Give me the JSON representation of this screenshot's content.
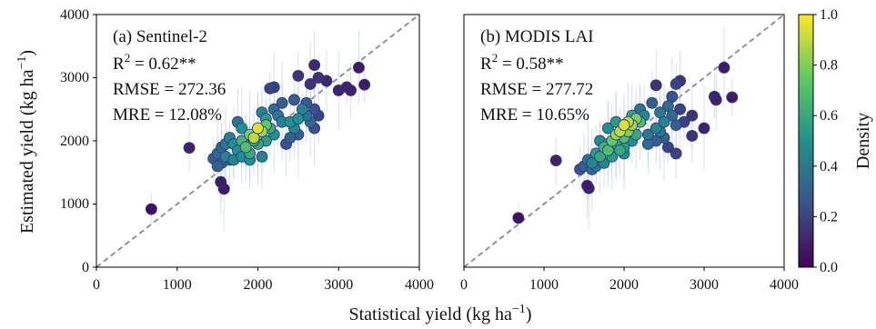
{
  "chart_data": {
    "type": "scatter",
    "axes": {
      "xlabel": "Statistical yield (kg ha",
      "xlabel_sup": "−1",
      "xlabel_close": ")",
      "ylabel": "Estimated yield (kg ha",
      "ylabel_sup": "−1",
      "ylabel_close": ")",
      "xlim": [
        0,
        4000
      ],
      "ylim": [
        0,
        4000
      ],
      "xticks": [
        0,
        1000,
        2000,
        3000,
        4000
      ],
      "yticks": [
        0,
        1000,
        2000,
        3000,
        4000
      ],
      "xtick_labels": [
        "0",
        "1000",
        "2000",
        "3000",
        "4000"
      ],
      "ytick_labels": [
        "0",
        "1000",
        "2000",
        "3000",
        "4000"
      ],
      "grid": false,
      "reference_line": "1:1 dashed gray"
    },
    "colorbar": {
      "label": "Density",
      "range": [
        0.0,
        1.0
      ],
      "ticks": [
        0.0,
        0.2,
        0.4,
        0.6,
        0.8,
        1.0
      ],
      "tick_labels": [
        "0.0",
        "0.2",
        "0.4",
        "0.6",
        "0.8",
        "1.0"
      ],
      "colormap": "viridis",
      "colors": [
        "#440154",
        "#3b528b",
        "#21918c",
        "#5ec962",
        "#fde725"
      ]
    },
    "panels": [
      {
        "title": "(a) Sentinel-2",
        "r2_prefix": "R",
        "r2_sup": "2",
        "r2_value": " = 0.62**",
        "rmse": "RMSE = 272.36",
        "mre": "MRE = 12.08%",
        "points": [
          [
            680,
            920,
            0.05
          ],
          [
            1150,
            1890,
            0.1
          ],
          [
            1540,
            1350,
            0.08
          ],
          [
            1580,
            1240,
            0.07
          ],
          [
            1450,
            1720,
            0.3
          ],
          [
            1500,
            1800,
            0.35
          ],
          [
            1550,
            1650,
            0.3
          ],
          [
            1600,
            1750,
            0.45
          ],
          [
            1650,
            1700,
            0.35
          ],
          [
            1700,
            1950,
            0.5
          ],
          [
            1750,
            1850,
            0.5
          ],
          [
            1800,
            2000,
            0.65
          ],
          [
            1850,
            1900,
            0.7
          ],
          [
            1900,
            2100,
            0.8
          ],
          [
            1950,
            2050,
            0.9
          ],
          [
            2000,
            2200,
            0.95
          ],
          [
            2050,
            2150,
            0.85
          ],
          [
            2100,
            2250,
            0.75
          ],
          [
            2150,
            2200,
            0.6
          ],
          [
            2200,
            2100,
            0.5
          ],
          [
            1700,
            1700,
            0.45
          ],
          [
            1800,
            1750,
            0.5
          ],
          [
            1900,
            1800,
            0.6
          ],
          [
            1650,
            2050,
            0.45
          ],
          [
            1550,
            1900,
            0.35
          ],
          [
            1750,
            2300,
            0.4
          ],
          [
            2000,
            1950,
            0.6
          ],
          [
            2100,
            2000,
            0.55
          ],
          [
            2250,
            2400,
            0.4
          ],
          [
            2300,
            2300,
            0.45
          ],
          [
            2400,
            2300,
            0.5
          ],
          [
            2450,
            2200,
            0.45
          ],
          [
            2500,
            2350,
            0.5
          ],
          [
            2550,
            2500,
            0.45
          ],
          [
            2600,
            2400,
            0.4
          ],
          [
            2650,
            2300,
            0.35
          ],
          [
            2500,
            2100,
            0.3
          ],
          [
            2400,
            2050,
            0.3
          ],
          [
            2350,
            1950,
            0.25
          ],
          [
            2300,
            2600,
            0.3
          ],
          [
            2450,
            2650,
            0.3
          ],
          [
            2600,
            2600,
            0.3
          ],
          [
            2700,
            2200,
            0.25
          ],
          [
            2700,
            2500,
            0.25
          ],
          [
            2750,
            2400,
            0.2
          ],
          [
            2200,
            2850,
            0.2
          ],
          [
            2150,
            2830,
            0.2
          ],
          [
            2500,
            3030,
            0.15
          ],
          [
            2700,
            3200,
            0.12
          ],
          [
            2650,
            2900,
            0.15
          ],
          [
            2750,
            3000,
            0.15
          ],
          [
            2850,
            2950,
            0.12
          ],
          [
            3000,
            2800,
            0.1
          ],
          [
            3100,
            2850,
            0.1
          ],
          [
            3150,
            2800,
            0.1
          ],
          [
            3250,
            3160,
            0.08
          ],
          [
            3320,
            2890,
            0.08
          ],
          [
            1850,
            2000,
            0.55
          ],
          [
            1950,
            2000,
            0.6
          ],
          [
            2000,
            2100,
            0.75
          ],
          [
            1900,
            1700,
            0.5
          ],
          [
            2050,
            1750,
            0.45
          ],
          [
            1800,
            2200,
            0.5
          ],
          [
            2100,
            2350,
            0.55
          ],
          [
            1500,
            1600,
            0.3
          ],
          [
            1600,
            1950,
            0.4
          ],
          [
            2200,
            2500,
            0.35
          ],
          [
            2050,
            2450,
            0.45
          ]
        ]
      },
      {
        "title": "(b) MODIS LAI",
        "r2_prefix": "R",
        "r2_sup": "2",
        "r2_value": " = 0.58**",
        "rmse": "RMSE = 277.72",
        "mre": "MRE = 10.65%",
        "points": [
          [
            680,
            780,
            0.05
          ],
          [
            1150,
            1690,
            0.1
          ],
          [
            1540,
            1290,
            0.08
          ],
          [
            1560,
            1250,
            0.07
          ],
          [
            1450,
            1550,
            0.25
          ],
          [
            1500,
            1600,
            0.3
          ],
          [
            1550,
            1700,
            0.4
          ],
          [
            1600,
            1650,
            0.45
          ],
          [
            1650,
            1800,
            0.55
          ],
          [
            1700,
            1750,
            0.6
          ],
          [
            1750,
            1900,
            0.65
          ],
          [
            1800,
            1850,
            0.7
          ],
          [
            1850,
            2000,
            0.75
          ],
          [
            1900,
            2100,
            0.85
          ],
          [
            1950,
            2150,
            0.9
          ],
          [
            2000,
            2250,
            0.95
          ],
          [
            2050,
            2300,
            0.9
          ],
          [
            2100,
            2250,
            0.85
          ],
          [
            2150,
            2350,
            0.8
          ],
          [
            2200,
            2300,
            0.7
          ],
          [
            1700,
            2000,
            0.5
          ],
          [
            1800,
            2200,
            0.5
          ],
          [
            1900,
            1950,
            0.6
          ],
          [
            1650,
            1600,
            0.4
          ],
          [
            1750,
            1650,
            0.45
          ],
          [
            1850,
            1750,
            0.55
          ],
          [
            2000,
            1900,
            0.55
          ],
          [
            2100,
            2000,
            0.5
          ],
          [
            2250,
            2400,
            0.45
          ],
          [
            2300,
            2100,
            0.4
          ],
          [
            2400,
            2200,
            0.45
          ],
          [
            2450,
            2450,
            0.4
          ],
          [
            2500,
            2300,
            0.45
          ],
          [
            2550,
            2550,
            0.35
          ],
          [
            2600,
            2400,
            0.35
          ],
          [
            2650,
            2250,
            0.3
          ],
          [
            2500,
            2050,
            0.3
          ],
          [
            2400,
            2000,
            0.3
          ],
          [
            2350,
            2600,
            0.3
          ],
          [
            2600,
            2700,
            0.25
          ],
          [
            2650,
            2900,
            0.2
          ],
          [
            2700,
            2950,
            0.15
          ],
          [
            2700,
            2500,
            0.2
          ],
          [
            2750,
            2300,
            0.2
          ],
          [
            2850,
            2080,
            0.15
          ],
          [
            2400,
            2880,
            0.15
          ],
          [
            2550,
            1900,
            0.2
          ],
          [
            2650,
            1800,
            0.2
          ],
          [
            2850,
            2400,
            0.15
          ],
          [
            3000,
            2200,
            0.1
          ],
          [
            3130,
            2700,
            0.1
          ],
          [
            3150,
            2650,
            0.1
          ],
          [
            3250,
            3160,
            0.08
          ],
          [
            3350,
            2690,
            0.08
          ],
          [
            1900,
            2300,
            0.55
          ],
          [
            2000,
            2050,
            0.7
          ],
          [
            2050,
            2150,
            0.8
          ],
          [
            1950,
            1850,
            0.6
          ],
          [
            2150,
            2100,
            0.6
          ],
          [
            1800,
            1950,
            0.6
          ],
          [
            2200,
            2500,
            0.4
          ],
          [
            2100,
            2400,
            0.6
          ],
          [
            1600,
            1550,
            0.35
          ],
          [
            2300,
            1950,
            0.35
          ],
          [
            2000,
            1800,
            0.5
          ],
          [
            2450,
            2150,
            0.4
          ]
        ]
      }
    ]
  }
}
